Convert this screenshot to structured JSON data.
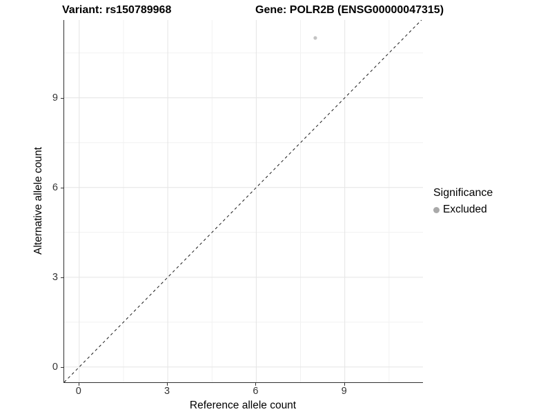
{
  "titles": {
    "variant": "Variant: rs150789968",
    "gene": "Gene: POLR2B (ENSG00000047315)"
  },
  "axes": {
    "x_label": "Reference allele count",
    "y_label": "Alternative allele count"
  },
  "legend": {
    "title": "Significance",
    "items": [
      {
        "label": "Excluded",
        "color": "#a9a9a9"
      }
    ]
  },
  "colors": {
    "point": "#c3c3c3",
    "legend_dot": "#a9a9a9",
    "grid_major": "#e4e4e4",
    "grid_minor": "#f1f1f1",
    "axis_line": "#2f2f2f",
    "dashed_line": "#1a1a1a",
    "text": "#000000"
  },
  "chart_data": {
    "type": "scatter",
    "title": "Variant: rs150789968   Gene: POLR2B (ENSG00000047315)",
    "xlabel": "Reference allele count",
    "ylabel": "Alternative allele count",
    "xlim": [
      -0.51,
      11.65
    ],
    "ylim": [
      -0.51,
      11.6
    ],
    "x_ticks": [
      0,
      3,
      6,
      9
    ],
    "y_ticks": [
      0,
      3,
      6,
      9
    ],
    "x_minor_ticks": [
      1.5,
      4.5,
      7.5,
      10.5
    ],
    "y_minor_ticks": [
      1.5,
      4.5,
      7.5,
      10.5
    ],
    "grid": "major+minor",
    "legend_position": "right",
    "legend_title": "Significance",
    "series": [
      {
        "name": "Excluded",
        "color": "#c3c3c3",
        "points": [
          {
            "x": 8,
            "y": 11
          }
        ]
      }
    ],
    "reference_line": {
      "type": "identity",
      "slope": 1,
      "intercept": 0,
      "style": "dashed",
      "color": "#1a1a1a"
    }
  }
}
